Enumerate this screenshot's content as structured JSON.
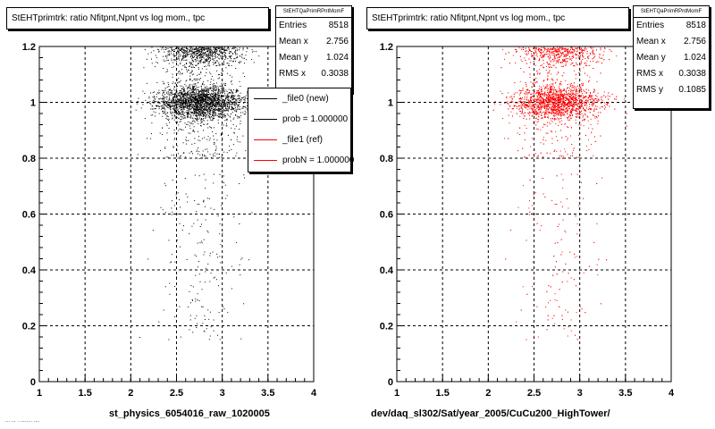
{
  "chart_data": [
    {
      "type": "scatter",
      "title": "StEHTprimtrk: ratio Nfitpnt,Npnt vs log mom., tpc",
      "xlabel": "st_physics_6054016_raw_1020005",
      "ylabel": "",
      "xlim": [
        1,
        4
      ],
      "ylim": [
        0,
        1.2
      ],
      "xticks": [
        "1",
        "1.5",
        "2",
        "2.5",
        "3",
        "3.5",
        "4"
      ],
      "yticks": [
        "0",
        "0.2",
        "0.4",
        "0.6",
        "0.8",
        "1",
        "1.2"
      ],
      "grid": true,
      "marker_color": "#000000",
      "stats": {
        "name": "StEHTQaPrimRPntMomF",
        "rows": [
          {
            "label": "Entries",
            "value": "8518"
          },
          {
            "label": "Mean x",
            "value": "2.756"
          },
          {
            "label": "Mean y",
            "value": "1.024"
          },
          {
            "label": "RMS x",
            "value": "0.3038"
          }
        ]
      },
      "legend": [
        {
          "label": "_file0 (new)",
          "color": "#000000"
        },
        {
          "label": "prob = 1.000000",
          "color": "#000000"
        },
        {
          "label": "_file1 (ref)",
          "color": "#ff0000"
        },
        {
          "label": "probN = 1.000000",
          "color": "#ff0000"
        }
      ],
      "distribution": {
        "entries": 8518,
        "mean_x": 2.756,
        "rms_x": 0.3038,
        "mean_y": 1.024,
        "rms_y": 0.1085,
        "x_range": [
          2.0,
          3.6
        ],
        "main_band_y": 1.0,
        "upper_band_y": 1.18
      }
    },
    {
      "type": "scatter",
      "title": "StEHTprimtrk: ratio Nfitpnt,Npnt vs log mom., tpc",
      "xlabel": "dev/daq_sl302/Sat/year_2005/CuCu200_HighTower/",
      "ylabel": "",
      "xlim": [
        1,
        4
      ],
      "ylim": [
        0,
        1.2
      ],
      "xticks": [
        "1",
        "1.5",
        "2",
        "2.5",
        "3",
        "3.5",
        "4"
      ],
      "yticks": [
        "0",
        "0.2",
        "0.4",
        "0.6",
        "0.8",
        "1",
        "1.2"
      ],
      "grid": true,
      "marker_color": "#ff0000",
      "stats": {
        "name": "StEHTQaPrimRPntMomF",
        "rows": [
          {
            "label": "Entries",
            "value": "8518"
          },
          {
            "label": "Mean x",
            "value": "2.756"
          },
          {
            "label": "Mean y",
            "value": "1.024"
          },
          {
            "label": "RMS x",
            "value": "0.3038"
          },
          {
            "label": "RMS y",
            "value": "0.1085"
          }
        ]
      },
      "distribution": {
        "entries": 8518,
        "mean_x": 2.756,
        "rms_x": 0.3038,
        "mean_y": 1.024,
        "rms_y": 0.1085,
        "x_range": [
          2.0,
          3.6
        ],
        "main_band_y": 1.0,
        "upper_band_y": 1.18
      }
    }
  ],
  "footer": {
    "corner_text": "... ... . ........ ...."
  }
}
